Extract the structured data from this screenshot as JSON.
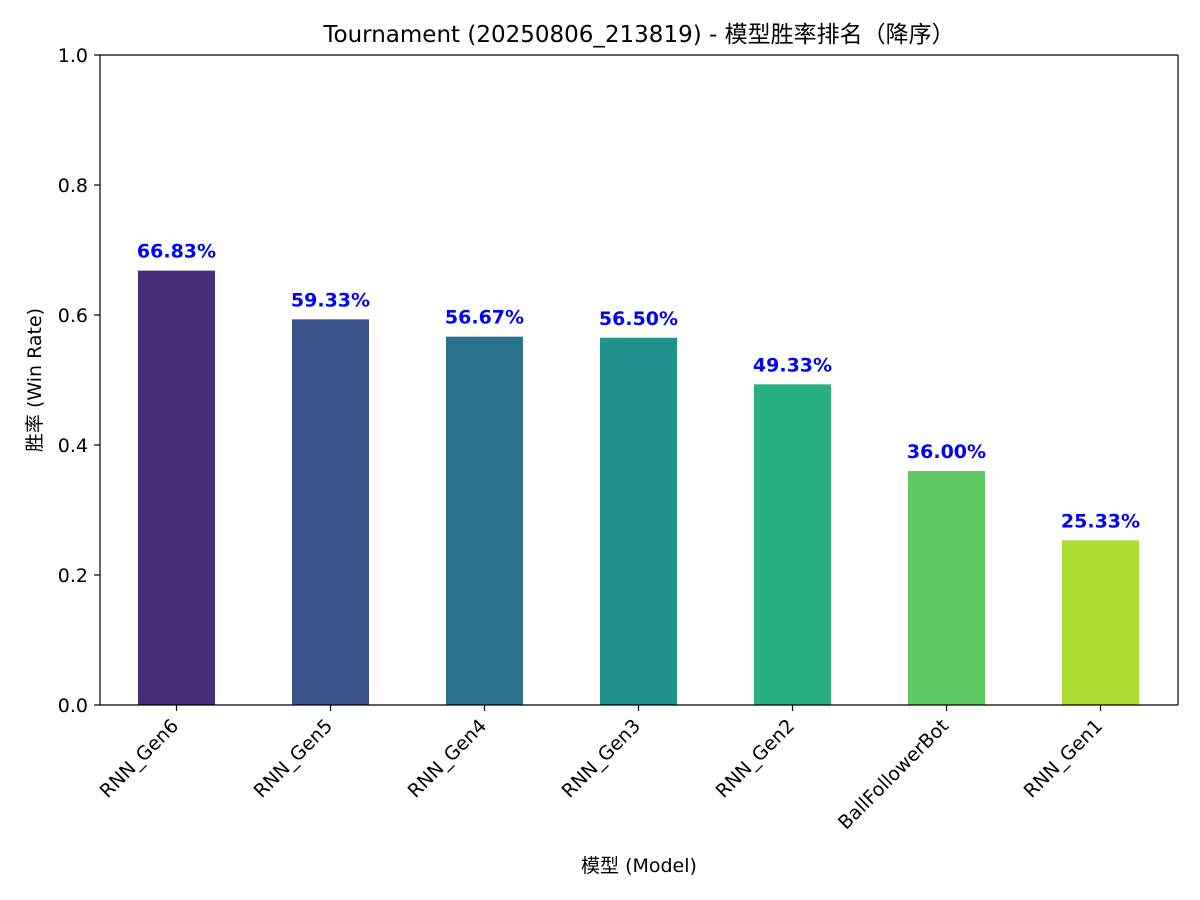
{
  "chart_data": {
    "type": "bar",
    "title": "Tournament (20250806_213819) - 模型胜率排名（降序）",
    "xlabel": "模型 (Model)",
    "ylabel": "胜率 (Win Rate)",
    "categories": [
      "RNN_Gen6",
      "RNN_Gen5",
      "RNN_Gen4",
      "RNN_Gen3",
      "RNN_Gen2",
      "BallFollowerBot",
      "RNN_Gen1"
    ],
    "values": [
      0.6683,
      0.5933,
      0.5667,
      0.565,
      0.4933,
      0.36,
      0.2533
    ],
    "data_labels": [
      "66.83%",
      "59.33%",
      "56.67%",
      "56.50%",
      "49.33%",
      "36.00%",
      "25.33%"
    ],
    "bar_colors": [
      "#472c7a",
      "#3b528b",
      "#2c728e",
      "#21918c",
      "#28ae80",
      "#5ec962",
      "#addc30"
    ],
    "label_color": "#0000ff",
    "ylim": [
      0,
      1.0
    ],
    "yticks": [
      "0.0",
      "0.2",
      "0.4",
      "0.6",
      "0.8",
      "1.0"
    ],
    "grid": false,
    "legend": "none"
  }
}
